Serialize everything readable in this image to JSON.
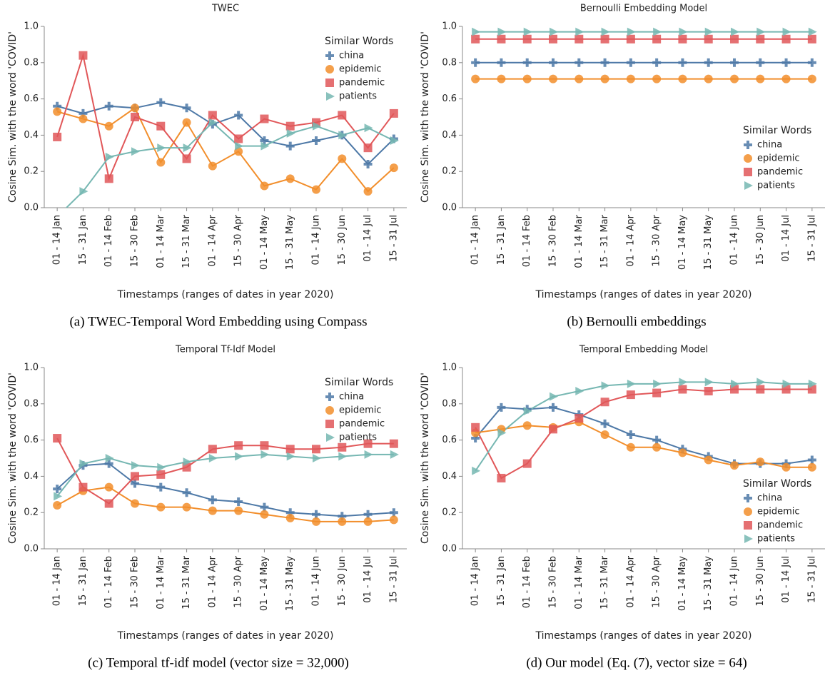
{
  "chart_data": [
    {
      "type": "line",
      "title": "TWEC",
      "caption": "(a) TWEC-Temporal Word Embedding using Compass",
      "xlabel": "Timestamps (ranges of dates in year 2020)",
      "ylabel": "Cosine Sim. with the word 'COVID'",
      "legend_title": "Similar Words",
      "legend": "top-right",
      "categories": [
        "01 - 14 Jan",
        "15 - 31 Jan",
        "01 - 14 Feb",
        "15 - 30 Feb",
        "01 - 14 Mar",
        "15 - 31 Mar",
        "01 - 14 Apr",
        "15 - 30 Apr",
        "01 - 14 May",
        "15 - 31 May",
        "01 - 14 Jun",
        "15 - 30 Jun",
        "01 - 14 Jul",
        "15 - 31 Jul"
      ],
      "ylim": [
        0,
        1
      ],
      "yticks": [
        {
          "value": 0,
          "label": "0.0"
        },
        0.2,
        0.4,
        0.6,
        0.8,
        {
          "value": 1,
          "label": "1.0"
        }
      ],
      "series": [
        {
          "name": "china",
          "color": "#4e79a7",
          "marker": "cross",
          "values": [
            0.56,
            0.52,
            0.56,
            0.55,
            0.58,
            0.55,
            0.46,
            0.51,
            0.37,
            0.34,
            0.37,
            0.4,
            0.24,
            0.38
          ]
        },
        {
          "name": "epidemic",
          "color": "#f28e2b",
          "marker": "circle",
          "values": [
            0.53,
            0.49,
            0.45,
            0.55,
            0.25,
            0.47,
            0.23,
            0.31,
            0.12,
            0.16,
            0.1,
            0.27,
            0.09,
            0.22
          ]
        },
        {
          "name": "pandemic",
          "color": "#e15759",
          "marker": "square",
          "values": [
            0.39,
            0.84,
            0.16,
            0.5,
            0.45,
            0.27,
            0.51,
            0.38,
            0.49,
            0.45,
            0.47,
            0.51,
            0.33,
            0.52
          ]
        },
        {
          "name": "patients",
          "color": "#76b7b2",
          "marker": "triangle",
          "values": [
            -0.05,
            0.09,
            0.28,
            0.31,
            0.33,
            0.33,
            0.47,
            0.34,
            0.34,
            0.41,
            0.45,
            0.4,
            0.44,
            0.37
          ]
        }
      ]
    },
    {
      "type": "line",
      "title": "Bernoulli Embedding Model",
      "caption": "(b) Bernoulli embeddings",
      "xlabel": "Timestamps (ranges of dates in year 2020)",
      "ylabel": "Cosine Sim. with the word 'COVID'",
      "legend_title": "Similar Words",
      "legend": "center-right",
      "categories": [
        "01 - 14 Jan",
        "15 - 31 Jan",
        "01 - 14 Feb",
        "15 - 30 Feb",
        "01 - 14 Mar",
        "15 - 31 Mar",
        "01 - 14 Apr",
        "15 - 30 Apr",
        "01 - 14 May",
        "15 - 31 May",
        "01 - 14 Jun",
        "15 - 30 Jun",
        "01 - 14 Jul",
        "15 - 31 Jul"
      ],
      "ylim": [
        0,
        1
      ],
      "yticks": [
        {
          "value": 0,
          "label": "0.0"
        },
        0.2,
        0.4,
        0.6,
        0.8,
        {
          "value": 1,
          "label": "1.0"
        }
      ],
      "series": [
        {
          "name": "china",
          "color": "#4e79a7",
          "marker": "cross",
          "values": [
            0.8,
            0.8,
            0.8,
            0.8,
            0.8,
            0.8,
            0.8,
            0.8,
            0.8,
            0.8,
            0.8,
            0.8,
            0.8,
            0.8
          ]
        },
        {
          "name": "epidemic",
          "color": "#f28e2b",
          "marker": "circle",
          "values": [
            0.71,
            0.71,
            0.71,
            0.71,
            0.71,
            0.71,
            0.71,
            0.71,
            0.71,
            0.71,
            0.71,
            0.71,
            0.71,
            0.71
          ]
        },
        {
          "name": "pandemic",
          "color": "#e15759",
          "marker": "square",
          "values": [
            0.93,
            0.93,
            0.93,
            0.93,
            0.93,
            0.93,
            0.93,
            0.93,
            0.93,
            0.93,
            0.93,
            0.93,
            0.93,
            0.93
          ]
        },
        {
          "name": "patients",
          "color": "#76b7b2",
          "marker": "triangle",
          "values": [
            0.97,
            0.97,
            0.97,
            0.97,
            0.97,
            0.97,
            0.97,
            0.97,
            0.97,
            0.97,
            0.97,
            0.97,
            0.97,
            0.97
          ]
        }
      ]
    },
    {
      "type": "line",
      "title": "Temporal Tf-Idf Model",
      "caption": "(c) Temporal tf-idf model (vector size = 32,000)",
      "xlabel": "Timestamps (ranges of dates in year 2020)",
      "ylabel": "Cosine Sim. with the word 'COVID'",
      "legend_title": "Similar Words",
      "legend": "top-right",
      "categories": [
        "01 - 14 Jan",
        "15 - 31 Jan",
        "01 - 14 Feb",
        "15 - 30 Feb",
        "01 - 14 Mar",
        "15 - 31 Mar",
        "01 - 14 Apr",
        "15 - 30 Apr",
        "01 - 14 May",
        "15 - 31 May",
        "01 - 14 Jun",
        "15 - 30 Jun",
        "01 - 14 Jul",
        "15 - 31 Jul"
      ],
      "ylim": [
        0,
        1
      ],
      "yticks": [
        {
          "value": 0,
          "label": "0.0"
        },
        0.2,
        0.4,
        0.6,
        0.8,
        {
          "value": 1,
          "label": "1.0"
        }
      ],
      "series": [
        {
          "name": "china",
          "color": "#4e79a7",
          "marker": "cross",
          "values": [
            0.33,
            0.46,
            0.47,
            0.36,
            0.34,
            0.31,
            0.27,
            0.26,
            0.23,
            0.2,
            0.19,
            0.18,
            0.19,
            0.2
          ]
        },
        {
          "name": "epidemic",
          "color": "#f28e2b",
          "marker": "circle",
          "values": [
            0.24,
            0.32,
            0.34,
            0.25,
            0.23,
            0.23,
            0.21,
            0.21,
            0.19,
            0.17,
            0.15,
            0.15,
            0.15,
            0.16
          ]
        },
        {
          "name": "pandemic",
          "color": "#e15759",
          "marker": "square",
          "values": [
            0.61,
            0.34,
            0.25,
            0.4,
            0.41,
            0.45,
            0.55,
            0.57,
            0.57,
            0.55,
            0.55,
            0.56,
            0.58,
            0.58
          ]
        },
        {
          "name": "patients",
          "color": "#76b7b2",
          "marker": "triangle",
          "values": [
            0.29,
            0.47,
            0.5,
            0.46,
            0.45,
            0.48,
            0.5,
            0.51,
            0.52,
            0.51,
            0.5,
            0.51,
            0.52,
            0.52
          ]
        }
      ]
    },
    {
      "type": "line",
      "title": "Temporal Embedding Model",
      "caption": "(d) Our model (Eq. (7), vector size = 64)",
      "xlabel": "Timestamps (ranges of dates in year 2020)",
      "ylabel": "Cosine Sim. with the word 'COVID'",
      "legend_title": "Similar Words",
      "legend": "bottom-right",
      "categories": [
        "01 - 14 Jan",
        "15 - 31 Jan",
        "01 - 14 Feb",
        "15 - 30 Feb",
        "01 - 14 Mar",
        "15 - 31 Mar",
        "01 - 14 Apr",
        "15 - 30 Apr",
        "01 - 14 May",
        "15 - 31 May",
        "01 - 14 Jun",
        "15 - 30 Jun",
        "01 - 14 Jul",
        "15 - 31 Jul"
      ],
      "ylim": [
        0,
        1
      ],
      "yticks": [
        {
          "value": 0,
          "label": "0.0"
        },
        0.2,
        0.4,
        0.6,
        0.8,
        {
          "value": 1,
          "label": "1.0"
        }
      ],
      "series": [
        {
          "name": "china",
          "color": "#4e79a7",
          "marker": "cross",
          "values": [
            0.61,
            0.78,
            0.77,
            0.78,
            0.74,
            0.69,
            0.63,
            0.6,
            0.55,
            0.51,
            0.47,
            0.47,
            0.47,
            0.49
          ]
        },
        {
          "name": "epidemic",
          "color": "#f28e2b",
          "marker": "circle",
          "values": [
            0.64,
            0.66,
            0.68,
            0.67,
            0.7,
            0.63,
            0.56,
            0.56,
            0.53,
            0.49,
            0.46,
            0.48,
            0.45,
            0.45
          ]
        },
        {
          "name": "pandemic",
          "color": "#e15759",
          "marker": "square",
          "values": [
            0.67,
            0.39,
            0.47,
            0.66,
            0.72,
            0.81,
            0.85,
            0.86,
            0.88,
            0.87,
            0.88,
            0.88,
            0.88,
            0.88
          ]
        },
        {
          "name": "patients",
          "color": "#76b7b2",
          "marker": "triangle",
          "values": [
            0.43,
            0.64,
            0.76,
            0.84,
            0.87,
            0.9,
            0.91,
            0.91,
            0.92,
            0.92,
            0.91,
            0.92,
            0.91,
            0.91
          ]
        }
      ]
    }
  ]
}
